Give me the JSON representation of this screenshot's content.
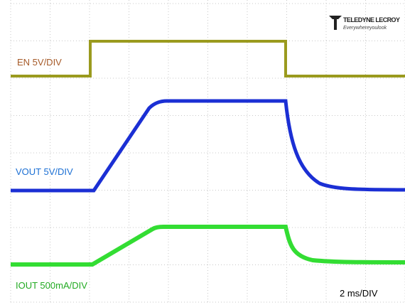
{
  "traces": [
    {
      "label": "EN 5V/DIV"
    },
    {
      "label": "VOUT 5V/DIV"
    },
    {
      "label": "IOUT 500mA/DIV"
    }
  ],
  "timebase": "2 ms/DIV",
  "logo": {
    "brand": "TELEDYNE LECROY",
    "tagline": "Everywhereyoulook"
  }
}
